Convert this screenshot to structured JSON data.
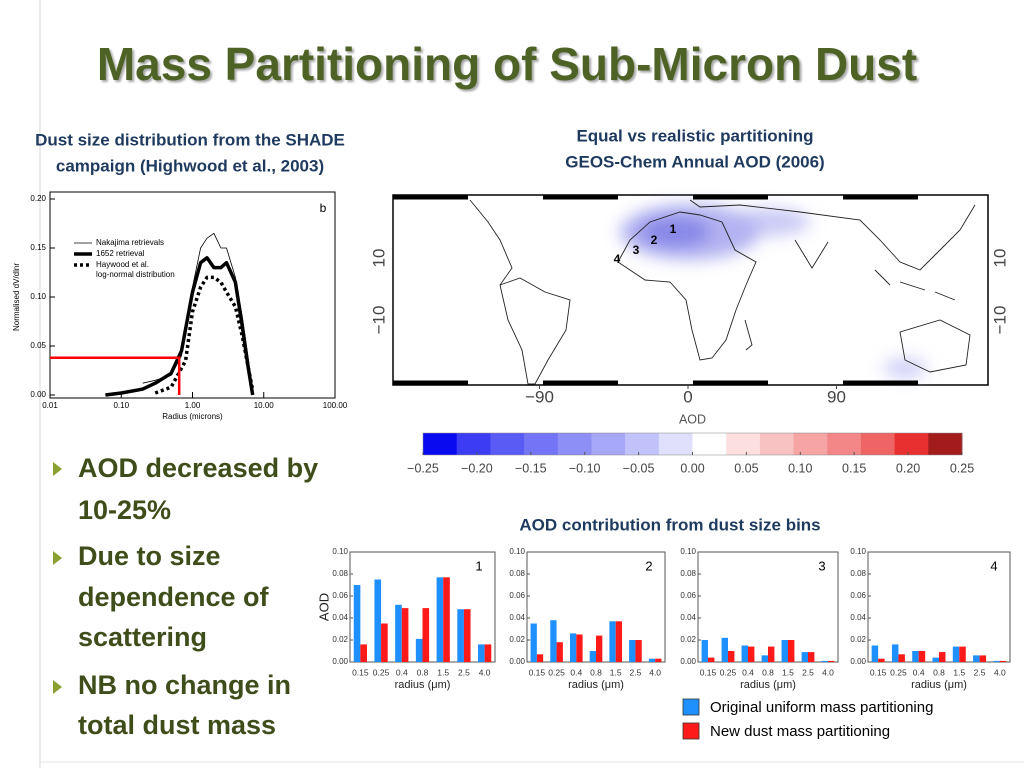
{
  "title": "Mass Partitioning of Sub-Micron Dust",
  "left_caption": [
    "Dust size distribution from the SHADE",
    "campaign (Highwood et al., 2003)"
  ],
  "map_caption": [
    "Equal vs realistic partitioning",
    "GEOS-Chem Annual AOD (2006)"
  ],
  "bins_title": "AOD contribution from dust size bins",
  "bullets": [
    [
      "AOD decreased by",
      "10-25%"
    ],
    [
      "Due to size",
      "dependence of",
      "scattering"
    ],
    [
      "NB no change in",
      "total dust mass"
    ]
  ],
  "map": {
    "xticks": [
      {
        "value": -90,
        "label": "−90"
      },
      0,
      90
    ],
    "yticks": [
      10,
      {
        "value": -10,
        "label": "−10"
      }
    ],
    "regions": [
      "1",
      "2",
      "3",
      "4"
    ]
  },
  "chart_data": [
    {
      "type": "line",
      "panel_label": "b",
      "xlabel": "Radius (microns)",
      "ylabel": "Normalised dV/dlnr",
      "xscale": "log",
      "xlim": [
        0.01,
        100
      ],
      "xticks": [
        0.01,
        {
          "value": 0.1,
          "label": "0.10"
        },
        {
          "value": 1,
          "label": "1.00"
        },
        {
          "value": 10,
          "label": "10.00"
        },
        {
          "value": 100,
          "label": "100.00"
        }
      ],
      "ylim": [
        0,
        0.2
      ],
      "yticks": [
        {
          "value": 0,
          "label": "0.00"
        },
        0.05,
        {
          "value": 0.1,
          "label": "0.10"
        },
        0.15,
        {
          "value": 0.2,
          "label": "0.20"
        }
      ],
      "series": [
        {
          "name": "Nakajima retrievals",
          "color": "#000000",
          "style": "thin",
          "x": [
            0.2,
            0.3,
            0.5,
            0.7,
            1.0,
            1.3,
            1.6,
            2.0,
            2.5,
            3.0,
            4.0,
            5.0,
            6.0,
            7.0
          ],
          "values": [
            0.012,
            0.015,
            0.02,
            0.04,
            0.11,
            0.15,
            0.16,
            0.165,
            0.15,
            0.15,
            0.12,
            0.08,
            0.04,
            0.005
          ]
        },
        {
          "name": "1652 retrieval",
          "color": "#000000",
          "style": "thick",
          "x": [
            0.06,
            0.1,
            0.2,
            0.3,
            0.5,
            0.7,
            1.0,
            1.3,
            1.6,
            2.0,
            2.5,
            3.0,
            4.0,
            5.0,
            6.0,
            7.0
          ],
          "values": [
            0,
            0.002,
            0.006,
            0.012,
            0.022,
            0.045,
            0.105,
            0.135,
            0.14,
            0.13,
            0.13,
            0.135,
            0.115,
            0.07,
            0.03,
            0
          ]
        },
        {
          "name": "Haywood et al.\nlog-normal distribution",
          "color": "#000000",
          "style": "dotted",
          "x": [
            0.3,
            0.5,
            0.8,
            1.0,
            1.3,
            1.6,
            2.0,
            2.5,
            3.0,
            4.0,
            5.0,
            6.0,
            7.0
          ],
          "values": [
            0.002,
            0.008,
            0.035,
            0.085,
            0.11,
            0.12,
            0.12,
            0.115,
            0.105,
            0.09,
            0.06,
            0.03,
            0.005
          ]
        }
      ],
      "highlight": {
        "color": "#ff0000",
        "x": [
          0.01,
          0.65,
          0.65
        ],
        "values": [
          0.038,
          0.038,
          0
        ]
      }
    },
    {
      "type": "colorbar",
      "label": "AOD",
      "xlim": [
        -0.25,
        0.25
      ],
      "colors": [
        "#0a0af0",
        "#3c3cf5",
        "#5a5af5",
        "#7474f6",
        "#8e8ef7",
        "#a8a8f8",
        "#c2c2fa",
        "#e0e0fc",
        "#ffffff",
        "#fce0e0",
        "#f9c2c2",
        "#f6a4a4",
        "#f38686",
        "#ef6464",
        "#e83030",
        "#a31c1c"
      ],
      "xticks": [
        {
          "value": -0.25,
          "label": "−0.25"
        },
        {
          "value": -0.2,
          "label": "−0.20"
        },
        {
          "value": -0.15,
          "label": "−0.15"
        },
        {
          "value": -0.1,
          "label": "−0.10"
        },
        {
          "value": -0.05,
          "label": "−0.05"
        },
        {
          "value": 0,
          "label": "0.00"
        },
        0.05,
        {
          "value": 0.1,
          "label": "0.10"
        },
        0.15,
        {
          "value": 0.2,
          "label": "0.20"
        },
        0.25
      ]
    },
    {
      "type": "bar",
      "panel_label": "1",
      "ylabel": "AOD",
      "xlabel": "radius (μm)",
      "categories": [
        "0.15",
        "0.25",
        "0.4",
        "0.8",
        "1.5",
        "2.5",
        "4.0"
      ],
      "ylim": [
        0,
        0.1
      ],
      "yticks": [
        {
          "value": 0,
          "label": "0.00"
        },
        0.02,
        0.04,
        0.06,
        0.08,
        {
          "value": 0.1,
          "label": "0.10"
        }
      ],
      "series": [
        {
          "name": "Original uniform mass partitioning",
          "color": "#1e90ff",
          "values": [
            0.07,
            0.075,
            0.052,
            0.021,
            0.077,
            0.048,
            0.016
          ]
        },
        {
          "name": "New dust mass partitioning",
          "color": "#ff1a1a",
          "values": [
            0.016,
            0.035,
            0.049,
            0.049,
            0.077,
            0.048,
            0.016
          ]
        }
      ]
    },
    {
      "type": "bar",
      "panel_label": "2",
      "xlabel": "radius (μm)",
      "categories": [
        "0.15",
        "0.25",
        "0.4",
        "0.8",
        "1.5",
        "2.5",
        "4.0"
      ],
      "ylim": [
        0,
        0.1
      ],
      "yticks": [
        {
          "value": 0,
          "label": "0.00"
        },
        0.02,
        0.04,
        0.06,
        0.08,
        {
          "value": 0.1,
          "label": "0.10"
        }
      ],
      "series": [
        {
          "color": "#1e90ff",
          "values": [
            0.035,
            0.038,
            0.026,
            0.01,
            0.037,
            0.02,
            0.003
          ]
        },
        {
          "color": "#ff1a1a",
          "values": [
            0.007,
            0.018,
            0.025,
            0.024,
            0.037,
            0.02,
            0.003
          ]
        }
      ]
    },
    {
      "type": "bar",
      "panel_label": "3",
      "xlabel": "radius (μm)",
      "categories": [
        "0.15",
        "0.25",
        "0.4",
        "0.8",
        "1.5",
        "2.5",
        "4.0"
      ],
      "ylim": [
        0,
        0.1
      ],
      "yticks": [
        {
          "value": 0,
          "label": "0.00"
        },
        0.02,
        0.04,
        0.06,
        0.08,
        {
          "value": 0.1,
          "label": "0.10"
        }
      ],
      "series": [
        {
          "color": "#1e90ff",
          "values": [
            0.02,
            0.022,
            0.015,
            0.006,
            0.02,
            0.009,
            0.001
          ]
        },
        {
          "color": "#ff1a1a",
          "values": [
            0.004,
            0.01,
            0.014,
            0.014,
            0.02,
            0.009,
            0.001
          ]
        }
      ]
    },
    {
      "type": "bar",
      "panel_label": "4",
      "xlabel": "radius (μm)",
      "categories": [
        "0.15",
        "0.25",
        "0.4",
        "0.8",
        "1.5",
        "2.5",
        "4.0"
      ],
      "ylim": [
        0,
        0.1
      ],
      "yticks": [
        {
          "value": 0,
          "label": "0.00"
        },
        0.02,
        0.04,
        0.06,
        0.08,
        {
          "value": 0.1,
          "label": "0.10"
        }
      ],
      "series": [
        {
          "color": "#1e90ff",
          "values": [
            0.015,
            0.016,
            0.01,
            0.004,
            0.014,
            0.006,
            0.001
          ]
        },
        {
          "color": "#ff1a1a",
          "values": [
            0.003,
            0.007,
            0.01,
            0.009,
            0.014,
            0.006,
            0.001
          ]
        }
      ]
    }
  ]
}
